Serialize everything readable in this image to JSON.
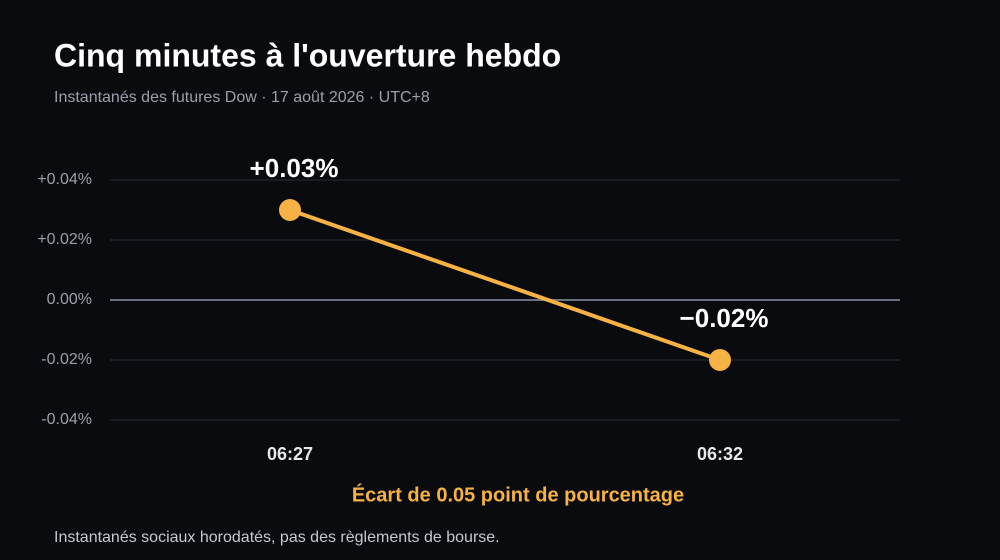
{
  "chart_data": {
    "type": "line",
    "title": "Cinq minutes à l'ouverture hebdo",
    "subtitle": "Instantanés des futures Dow · 17 août 2026 · UTC+8",
    "categories": [
      "06:27",
      "06:32"
    ],
    "series": [
      {
        "name": "Dow futures",
        "color": "#f7b245",
        "values": [
          0.03,
          -0.02
        ],
        "value_labels": [
          "+0.03%",
          "−0.02%"
        ]
      }
    ],
    "ylim": [
      -0.04,
      0.04
    ],
    "yticks": [
      {
        "value": 0.04,
        "label": "+0.04%"
      },
      {
        "value": 0.02,
        "label": "+0.02%"
      },
      {
        "value": 0,
        "label": "0.00%"
      },
      {
        "value": -0.02,
        "label": "-0.02%"
      },
      {
        "value": -0.04,
        "label": "-0.04%"
      }
    ],
    "grid": true,
    "annotation": "Écart de 0.05 point de pourcentage",
    "footnote": "Instantanés sociaux horodatés, pas des règlements de bourse."
  }
}
